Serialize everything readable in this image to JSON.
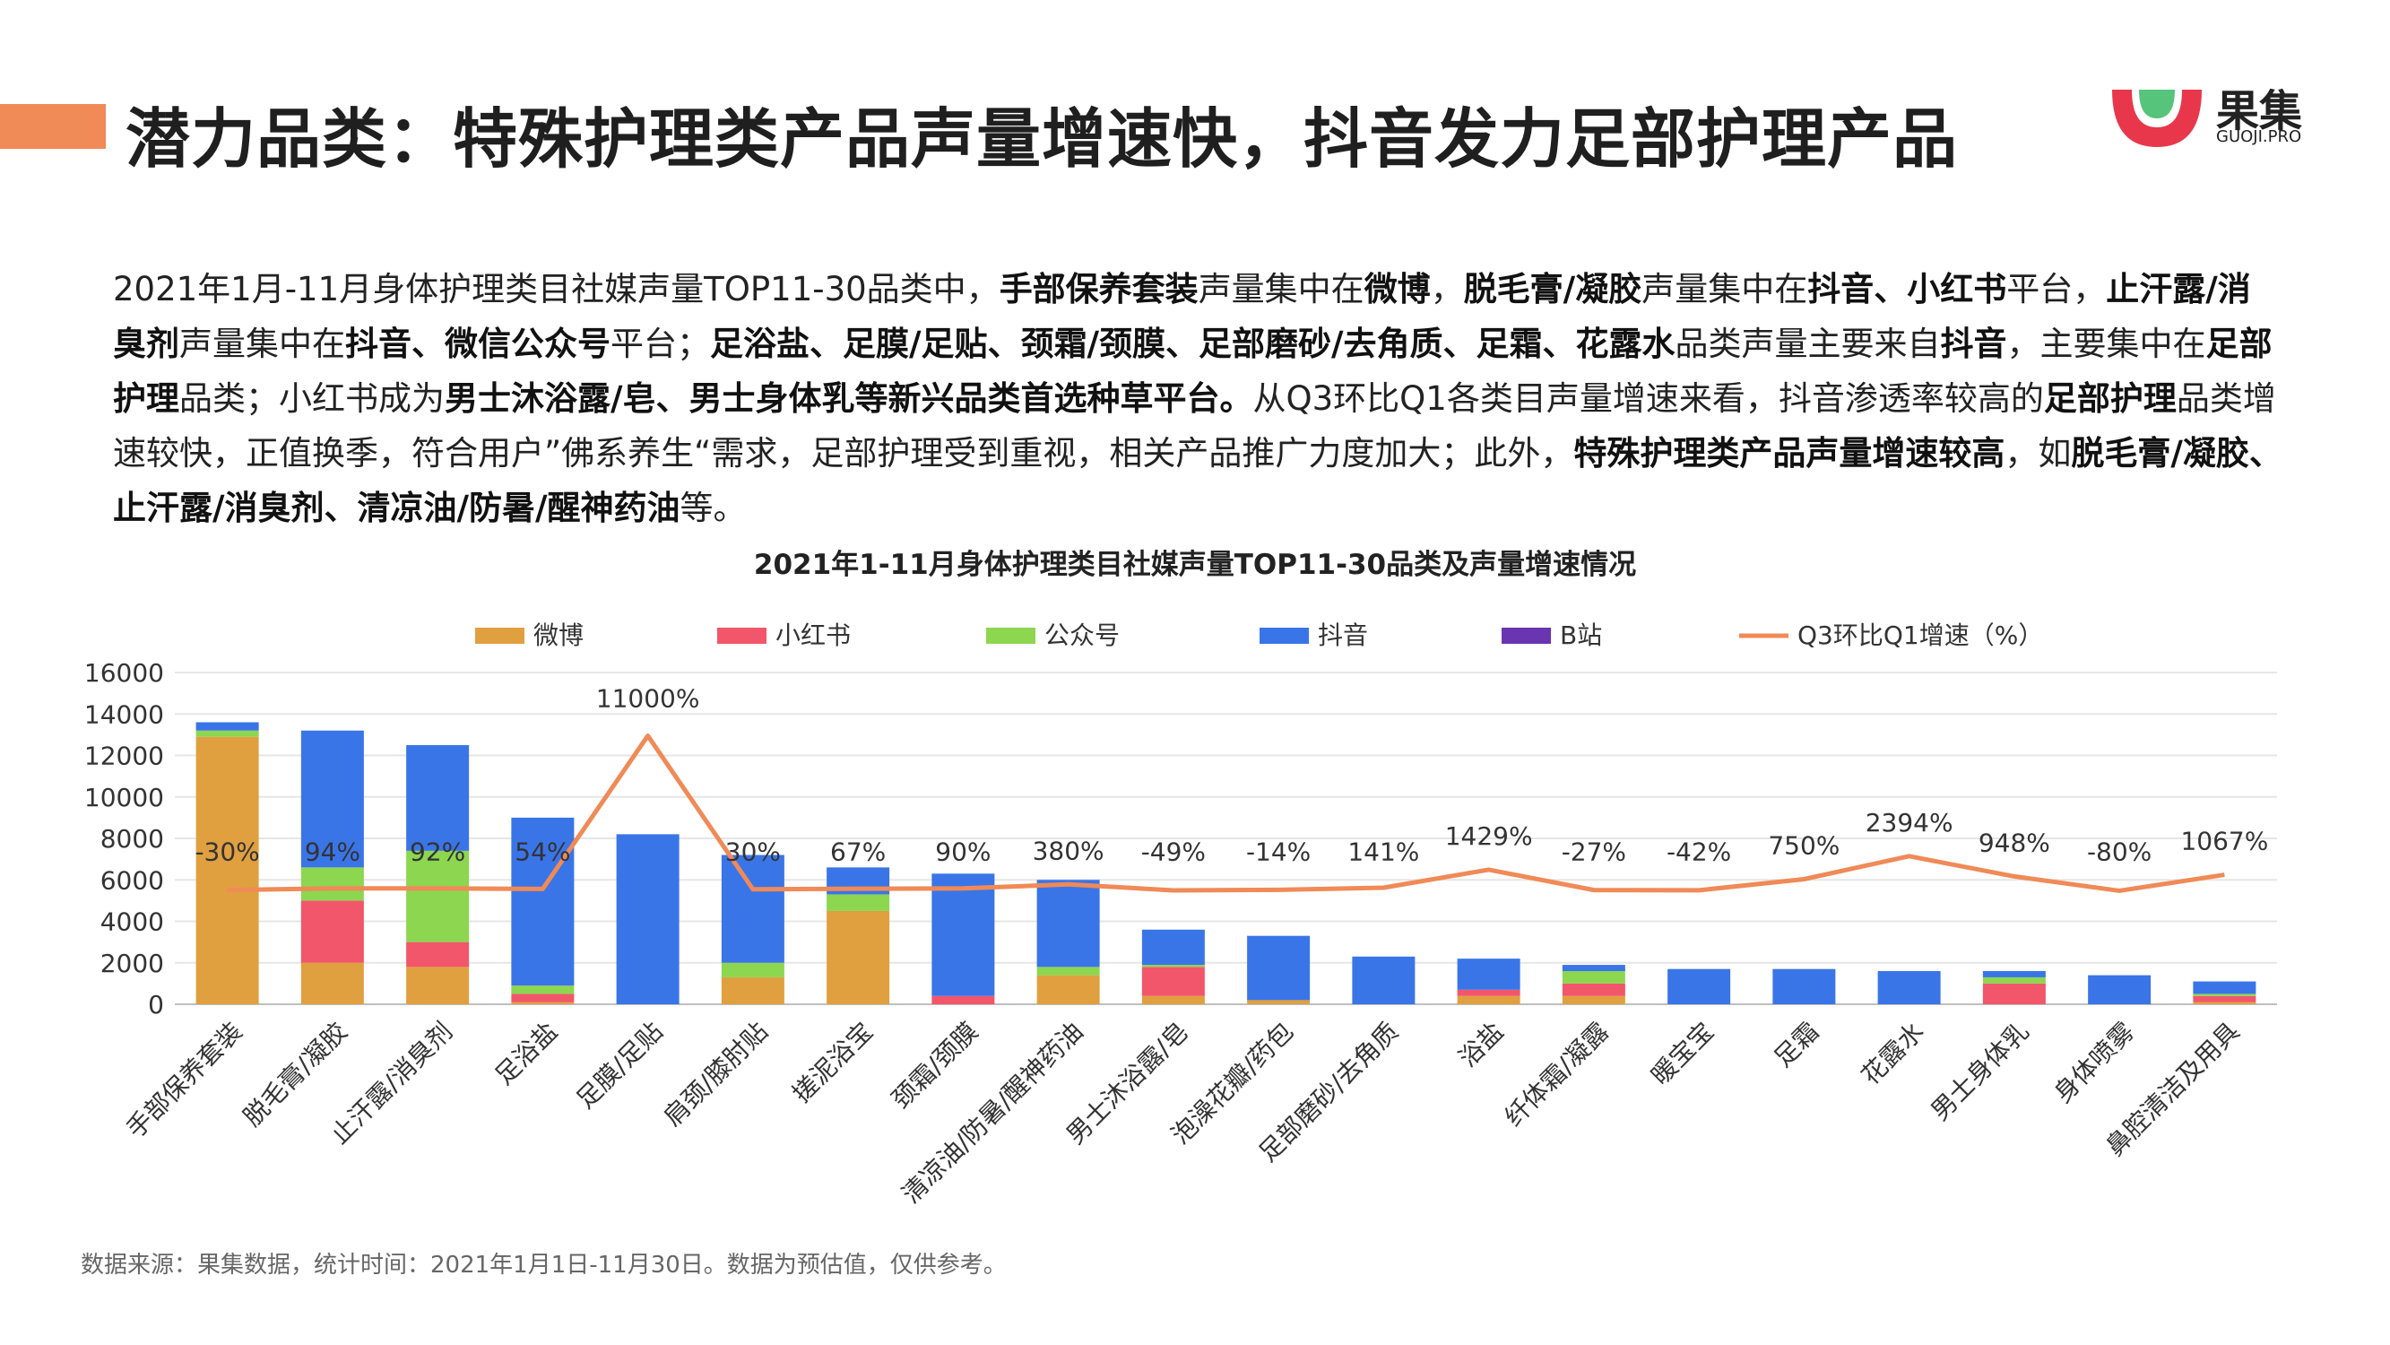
{
  "header": {
    "title": "潜力品类：特殊护理类产品声量增速快，抖音发力足部护理产品",
    "logo_text": "果集",
    "logo_sub": "GUOJI.PRO"
  },
  "summary": {
    "segments": [
      {
        "t": "2021年1月-11月身体护理类目社媒声量TOP11-30品类中，",
        "b": false
      },
      {
        "t": "手部保养套装",
        "b": true
      },
      {
        "t": "声量集中在",
        "b": false
      },
      {
        "t": "微博",
        "b": true
      },
      {
        "t": "，",
        "b": false
      },
      {
        "t": "脱毛膏/凝胶",
        "b": true
      },
      {
        "t": "声量集中在",
        "b": false
      },
      {
        "t": "抖音、小红书",
        "b": true
      },
      {
        "t": "平台，",
        "b": false
      },
      {
        "t": "止汗露/消臭剂",
        "b": true
      },
      {
        "t": "声量集中在",
        "b": false
      },
      {
        "t": "抖音、微信公众号",
        "b": true
      },
      {
        "t": "平台；",
        "b": false
      },
      {
        "t": "足浴盐、足膜/足贴、颈霜/颈膜、足部磨砂/去角质、足霜、花露水",
        "b": true
      },
      {
        "t": "品类声量主要来自",
        "b": false
      },
      {
        "t": "抖音",
        "b": true
      },
      {
        "t": "，主要集中在",
        "b": false
      },
      {
        "t": "足部护理",
        "b": true
      },
      {
        "t": "品类；小红书成为",
        "b": false
      },
      {
        "t": "男士沐浴露/皂、男士身体乳等新兴品类首选种草平台。",
        "b": true
      },
      {
        "t": "从Q3环比Q1各类目声量增速来看，抖音渗透率较高的",
        "b": false
      },
      {
        "t": "足部护理",
        "b": true
      },
      {
        "t": "品类增速较快，正值换季，符合用户”佛系养生“需求，足部护理受到重视，相关产品推广力度加大；此外，",
        "b": false
      },
      {
        "t": "特殊护理类产品声量增速较高",
        "b": true
      },
      {
        "t": "，如",
        "b": false
      },
      {
        "t": "脱毛膏/凝胶、止汗露/消臭剂、清凉油/防暑/醒神药油",
        "b": true
      },
      {
        "t": "等。",
        "b": false
      }
    ]
  },
  "chart_data": {
    "type": "bar",
    "title": "2021年1-11月身体护理类目社媒声量TOP11-30品类及声量增速情况",
    "categories": [
      "手部保养套装",
      "脱毛膏/凝胶",
      "止汗露/消臭剂",
      "足浴盐",
      "足膜/足贴",
      "肩颈/膝肘贴",
      "搓泥浴宝",
      "颈霜/颈膜",
      "清凉油/防暑/醒神药油",
      "男士沐浴露/皂",
      "泡澡花瓣/药包",
      "足部磨砂/去角质",
      "浴盐",
      "纤体霜/凝露",
      "暖宝宝",
      "足霜",
      "花露水",
      "男士身体乳",
      "身体喷雾",
      "鼻腔清洁及用具"
    ],
    "series": [
      {
        "name": "微博",
        "color": "#e0a040",
        "values": [
          12900,
          2000,
          1800,
          100,
          0,
          1300,
          4500,
          0,
          1400,
          400,
          200,
          0,
          400,
          400,
          0,
          0,
          0,
          0,
          0,
          100
        ]
      },
      {
        "name": "小红书",
        "color": "#f2566a",
        "values": [
          0,
          3000,
          1200,
          400,
          0,
          0,
          0,
          400,
          0,
          1400,
          0,
          0,
          300,
          600,
          0,
          0,
          0,
          1000,
          0,
          300
        ]
      },
      {
        "name": "公众号",
        "color": "#8cd650",
        "values": [
          300,
          1600,
          4400,
          400,
          0,
          700,
          800,
          0,
          400,
          100,
          0,
          0,
          0,
          600,
          0,
          0,
          0,
          300,
          0,
          100
        ]
      },
      {
        "name": "抖音",
        "color": "#3a75e8",
        "values": [
          400,
          6600,
          5100,
          8100,
          8200,
          5200,
          1300,
          5900,
          4200,
          1700,
          3100,
          2300,
          1500,
          300,
          1700,
          1700,
          1600,
          300,
          1400,
          600
        ]
      },
      {
        "name": "B站",
        "color": "#6a35b0",
        "values": [
          0,
          0,
          0,
          0,
          0,
          0,
          0,
          0,
          0,
          0,
          0,
          0,
          0,
          0,
          0,
          0,
          0,
          0,
          0,
          0
        ]
      }
    ],
    "line": {
      "name": "Q3环比Q1增速（%）",
      "color": "#f08a57",
      "values": [
        -30,
        94,
        92,
        54,
        11000,
        30,
        67,
        90,
        380,
        -49,
        -14,
        141,
        1429,
        -27,
        -42,
        750,
        2394,
        948,
        -80,
        1067
      ],
      "labels": [
        "-30%",
        "94%",
        "92%",
        "54%",
        "11000%",
        "30%",
        "67%",
        "90%",
        "380%",
        "-49%",
        "-14%",
        "141%",
        "1429%",
        "-27%",
        "-42%",
        "750%",
        "2394%",
        "948%",
        "-80%",
        "1067%"
      ]
    },
    "ylim": [
      0,
      16000
    ],
    "yticks": [
      0,
      2000,
      4000,
      6000,
      8000,
      10000,
      12000,
      14000,
      16000
    ],
    "grid": true,
    "legend": "top"
  },
  "footer": {
    "source": "数据来源：果集数据，统计时间：2021年1月1日-11月30日。数据为预估值，仅供参考。"
  }
}
